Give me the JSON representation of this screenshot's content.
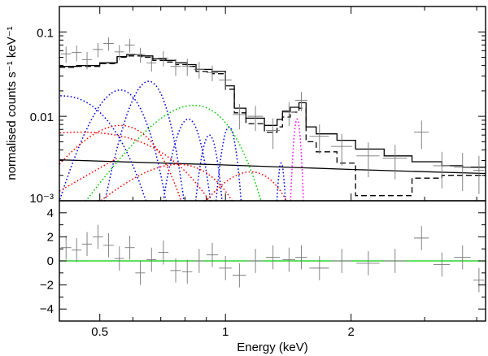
{
  "chart_data": [
    {
      "type": "line",
      "panel": "spectrum",
      "title": "",
      "xlabel": "Energy (keV)",
      "ylabel": "normalised counts s⁻¹ keV⁻¹",
      "xscale": "log",
      "yscale": "log",
      "xlim": [
        0.4,
        4.2
      ],
      "ylim": [
        0.001,
        0.2
      ],
      "ytick_labels": [
        {
          "value": 0.1,
          "label": "0.1"
        },
        {
          "value": 0.01,
          "label": "0.01"
        },
        {
          "value": 0.001,
          "label": "10⁻³"
        }
      ],
      "data_points": {
        "name": "data",
        "points": [
          {
            "x": 0.415,
            "y": 0.055,
            "xerr": 0.012,
            "yerr": 0.012
          },
          {
            "x": 0.44,
            "y": 0.057,
            "xerr": 0.012,
            "yerr": 0.012
          },
          {
            "x": 0.466,
            "y": 0.047,
            "xerr": 0.013,
            "yerr": 0.011
          },
          {
            "x": 0.495,
            "y": 0.062,
            "xerr": 0.014,
            "yerr": 0.012
          },
          {
            "x": 0.525,
            "y": 0.073,
            "xerr": 0.015,
            "yerr": 0.013
          },
          {
            "x": 0.557,
            "y": 0.058,
            "xerr": 0.015,
            "yerr": 0.012
          },
          {
            "x": 0.59,
            "y": 0.07,
            "xerr": 0.016,
            "yerr": 0.013
          },
          {
            "x": 0.625,
            "y": 0.054,
            "xerr": 0.017,
            "yerr": 0.011
          },
          {
            "x": 0.665,
            "y": 0.043,
            "xerr": 0.018,
            "yerr": 0.009
          },
          {
            "x": 0.71,
            "y": 0.049,
            "xerr": 0.02,
            "yerr": 0.01
          },
          {
            "x": 0.76,
            "y": 0.039,
            "xerr": 0.022,
            "yerr": 0.009
          },
          {
            "x": 0.81,
            "y": 0.039,
            "xerr": 0.023,
            "yerr": 0.009
          },
          {
            "x": 0.865,
            "y": 0.036,
            "xerr": 0.025,
            "yerr": 0.008
          },
          {
            "x": 0.93,
            "y": 0.033,
            "xerr": 0.03,
            "yerr": 0.007
          },
          {
            "x": 1.0,
            "y": 0.027,
            "xerr": 0.035,
            "yerr": 0.006
          },
          {
            "x": 1.08,
            "y": 0.0105,
            "xerr": 0.04,
            "yerr": 0.0035
          },
          {
            "x": 1.18,
            "y": 0.01,
            "xerr": 0.05,
            "yerr": 0.0033
          },
          {
            "x": 1.3,
            "y": 0.0068,
            "xerr": 0.05,
            "yerr": 0.0027
          },
          {
            "x": 1.42,
            "y": 0.0112,
            "xerr": 0.05,
            "yerr": 0.0035
          },
          {
            "x": 1.52,
            "y": 0.0155,
            "xerr": 0.05,
            "yerr": 0.004
          },
          {
            "x": 1.68,
            "y": 0.0058,
            "xerr": 0.09,
            "yerr": 0.0022
          },
          {
            "x": 1.9,
            "y": 0.0044,
            "xerr": 0.11,
            "yerr": 0.0018
          },
          {
            "x": 2.2,
            "y": 0.0034,
            "xerr": 0.14,
            "yerr": 0.0015
          },
          {
            "x": 2.55,
            "y": 0.0032,
            "xerr": 0.17,
            "yerr": 0.0014
          },
          {
            "x": 2.95,
            "y": 0.0065,
            "xerr": 0.12,
            "yerr": 0.0024
          },
          {
            "x": 3.3,
            "y": 0.0026,
            "xerr": 0.15,
            "yerr": 0.0012
          },
          {
            "x": 3.7,
            "y": 0.0025,
            "xerr": 0.17,
            "yerr": 0.0012
          },
          {
            "x": 4.05,
            "y": 0.0023,
            "xerr": 0.12,
            "yerr": 0.0011
          }
        ]
      },
      "series": [
        {
          "name": "total model",
          "style": "solid",
          "color": "#000000",
          "steps": [
            [
              0.4,
              0.039
            ],
            [
              0.44,
              0.04
            ],
            [
              0.5,
              0.043
            ],
            [
              0.55,
              0.051
            ],
            [
              0.58,
              0.054
            ],
            [
              0.63,
              0.052
            ],
            [
              0.67,
              0.048
            ],
            [
              0.72,
              0.046
            ],
            [
              0.76,
              0.043
            ],
            [
              0.81,
              0.041
            ],
            [
              0.85,
              0.036
            ],
            [
              0.93,
              0.034
            ],
            [
              1.0,
              0.023
            ],
            [
              1.05,
              0.0125
            ],
            [
              1.12,
              0.0095
            ],
            [
              1.24,
              0.0078
            ],
            [
              1.33,
              0.0092
            ],
            [
              1.37,
              0.0115
            ],
            [
              1.43,
              0.0128
            ],
            [
              1.5,
              0.0145
            ],
            [
              1.56,
              0.0075
            ],
            [
              1.65,
              0.0062
            ],
            [
              1.85,
              0.0052
            ],
            [
              2.05,
              0.0041
            ],
            [
              2.4,
              0.0034
            ],
            [
              2.8,
              0.0029
            ],
            [
              3.3,
              0.0026
            ],
            [
              3.7,
              0.0025
            ],
            [
              4.2,
              0.0025
            ]
          ]
        },
        {
          "name": "model (alternate)",
          "style": "dashed",
          "color": "#000000",
          "steps": [
            [
              0.4,
              0.038
            ],
            [
              0.44,
              0.039
            ],
            [
              0.5,
              0.042
            ],
            [
              0.55,
              0.05
            ],
            [
              0.58,
              0.052
            ],
            [
              0.63,
              0.05
            ],
            [
              0.67,
              0.046
            ],
            [
              0.72,
              0.044
            ],
            [
              0.76,
              0.041
            ],
            [
              0.81,
              0.039
            ],
            [
              0.85,
              0.034
            ],
            [
              0.93,
              0.032
            ],
            [
              1.0,
              0.021
            ],
            [
              1.05,
              0.011
            ],
            [
              1.12,
              0.0082
            ],
            [
              1.24,
              0.0065
            ],
            [
              1.33,
              0.0075
            ],
            [
              1.37,
              0.0098
            ],
            [
              1.43,
              0.0112
            ],
            [
              1.5,
              0.0125
            ],
            [
              1.56,
              0.005
            ],
            [
              1.65,
              0.0038
            ],
            [
              1.85,
              0.0028
            ],
            [
              1.9,
              0.0028
            ],
            [
              2.05,
              0.00115
            ],
            [
              2.4,
              0.00115
            ],
            [
              2.8,
              0.00185
            ],
            [
              3.3,
              0.002
            ],
            [
              4.2,
              0.0021
            ]
          ]
        },
        {
          "name": "power-law continuum",
          "style": "solid",
          "color": "#000000",
          "points": [
            [
              0.4,
              0.00305
            ],
            [
              1.0,
              0.00265
            ],
            [
              2.0,
              0.00235
            ],
            [
              4.2,
              0.0021
            ]
          ]
        },
        {
          "name": "blue gaussian lines",
          "style": "dotted",
          "color": "#0000dd",
          "components": [
            {
              "center": 0.405,
              "peak": 0.0175,
              "sigma": 0.1
            },
            {
              "center": 0.56,
              "peak": 0.0205,
              "sigma": 0.065
            },
            {
              "center": 0.655,
              "peak": 0.026,
              "sigma": 0.055
            },
            {
              "center": 0.815,
              "peak": 0.0093,
              "sigma": 0.05
            },
            {
              "center": 0.915,
              "peak": 0.006,
              "sigma": 0.035
            },
            {
              "center": 1.02,
              "peak": 0.0075,
              "sigma": 0.035
            },
            {
              "center": 1.36,
              "peak": 0.0028,
              "sigma": 0.022
            }
          ]
        },
        {
          "name": "green gaussian line",
          "style": "dotted",
          "color": "#00cc00",
          "components": [
            {
              "center": 0.84,
              "peak": 0.0135,
              "sigma": 0.165
            }
          ]
        },
        {
          "name": "red gaussian lines",
          "style": "dotted",
          "color": "#ff0000",
          "components": [
            {
              "center": 0.45,
              "peak": 0.0065,
              "sigma": 0.24
            },
            {
              "center": 0.56,
              "peak": 0.0078,
              "sigma": 0.11
            },
            {
              "center": 0.77,
              "peak": 0.0027,
              "sigma": 0.19
            },
            {
              "center": 1.15,
              "peak": 0.0022,
              "sigma": 0.2
            }
          ],
          "baseline": {
            "from": [
              0.4,
              0.0013
            ],
            "to": [
              0.55,
              0.0032
            ]
          }
        },
        {
          "name": "magenta gaussian line",
          "style": "dotted",
          "color": "#ff00ff",
          "components": [
            {
              "center": 1.485,
              "peak": 0.0093,
              "sigma": 0.025
            }
          ]
        }
      ]
    },
    {
      "type": "scatter",
      "panel": "residuals",
      "xlabel": "Energy (keV)",
      "ylabel": "",
      "xscale": "log",
      "xlim": [
        0.4,
        4.2
      ],
      "ylim": [
        -5,
        5
      ],
      "yticks": [
        4,
        2,
        0,
        -2,
        -4
      ],
      "xtick_labels": [
        {
          "value": 0.5,
          "label": "0.5"
        },
        {
          "value": 1.0,
          "label": "1"
        },
        {
          "value": 2.0,
          "label": "2"
        }
      ],
      "reference_line": {
        "y": 0,
        "color": "#00cc00"
      },
      "points": [
        {
          "x": 0.415,
          "y": 1.1,
          "xerr": 0.012,
          "yerr": 1.0
        },
        {
          "x": 0.44,
          "y": 0.9,
          "xerr": 0.012,
          "yerr": 1.0
        },
        {
          "x": 0.466,
          "y": 1.4,
          "xerr": 0.013,
          "yerr": 1.0
        },
        {
          "x": 0.495,
          "y": 2.0,
          "xerr": 0.014,
          "yerr": 1.0
        },
        {
          "x": 0.525,
          "y": 1.3,
          "xerr": 0.015,
          "yerr": 1.0
        },
        {
          "x": 0.557,
          "y": 0.2,
          "xerr": 0.015,
          "yerr": 1.0
        },
        {
          "x": 0.59,
          "y": 1.1,
          "xerr": 0.016,
          "yerr": 1.0
        },
        {
          "x": 0.625,
          "y": -1.0,
          "xerr": 0.017,
          "yerr": 1.0
        },
        {
          "x": 0.665,
          "y": 0.1,
          "xerr": 0.018,
          "yerr": 1.0
        },
        {
          "x": 0.71,
          "y": 0.7,
          "xerr": 0.02,
          "yerr": 1.0
        },
        {
          "x": 0.76,
          "y": -0.8,
          "xerr": 0.022,
          "yerr": 1.0
        },
        {
          "x": 0.81,
          "y": -0.9,
          "xerr": 0.023,
          "yerr": 1.0
        },
        {
          "x": 0.865,
          "y": 0.0,
          "xerr": 0.025,
          "yerr": 1.0
        },
        {
          "x": 0.93,
          "y": 0.5,
          "xerr": 0.03,
          "yerr": 1.0
        },
        {
          "x": 1.0,
          "y": -0.6,
          "xerr": 0.035,
          "yerr": 1.0
        },
        {
          "x": 1.08,
          "y": -1.2,
          "xerr": 0.04,
          "yerr": 1.0
        },
        {
          "x": 1.18,
          "y": 0.0,
          "xerr": 0.05,
          "yerr": 1.0
        },
        {
          "x": 1.3,
          "y": 0.3,
          "xerr": 0.05,
          "yerr": 1.0
        },
        {
          "x": 1.42,
          "y": 0.1,
          "xerr": 0.05,
          "yerr": 1.0
        },
        {
          "x": 1.52,
          "y": 0.3,
          "xerr": 0.05,
          "yerr": 1.0
        },
        {
          "x": 1.68,
          "y": -0.6,
          "xerr": 0.09,
          "yerr": 1.0
        },
        {
          "x": 1.9,
          "y": 0.0,
          "xerr": 0.11,
          "yerr": 1.0
        },
        {
          "x": 2.2,
          "y": -0.2,
          "xerr": 0.14,
          "yerr": 1.0
        },
        {
          "x": 2.55,
          "y": 0.0,
          "xerr": 0.17,
          "yerr": 1.0
        },
        {
          "x": 2.95,
          "y": 1.9,
          "xerr": 0.12,
          "yerr": 1.0
        },
        {
          "x": 3.3,
          "y": -0.3,
          "xerr": 0.15,
          "yerr": 1.0
        },
        {
          "x": 3.7,
          "y": 0.3,
          "xerr": 0.17,
          "yerr": 1.0
        },
        {
          "x": 4.05,
          "y": -1.6,
          "xerr": 0.12,
          "yerr": 1.0
        }
      ]
    }
  ]
}
